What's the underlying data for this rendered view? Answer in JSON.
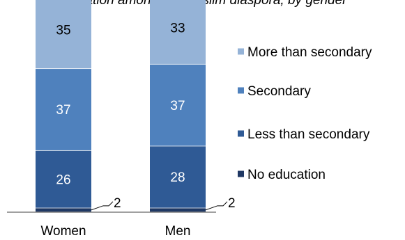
{
  "chart_data": {
    "type": "bar",
    "stacked": true,
    "title": "",
    "xlabel": "",
    "ylabel": "",
    "ylim": [
      0,
      100
    ],
    "grid": false,
    "legend_position": "right",
    "categories": [
      "Women",
      "Men"
    ],
    "series": [
      {
        "name": "No education",
        "values": [
          2,
          2
        ],
        "color": "#1f3864",
        "labels": [
          "2",
          "2"
        ]
      },
      {
        "name": "Less than secondary",
        "values": [
          26,
          28
        ],
        "color": "#2f5a95",
        "labels": [
          "26",
          "28"
        ]
      },
      {
        "name": "Secondary",
        "values": [
          37,
          37
        ],
        "color": "#4f81bd",
        "labels": [
          "37",
          "37"
        ]
      },
      {
        "name": "More than secondary",
        "values": [
          35,
          33
        ],
        "color": "#95b3d7",
        "labels": [
          "35",
          "33"
        ]
      }
    ],
    "partial_top_text": "ucation among the Muslim diaspora, by gender",
    "label_text_color_dark": "#000000",
    "label_text_color_light": "#ffffff"
  }
}
